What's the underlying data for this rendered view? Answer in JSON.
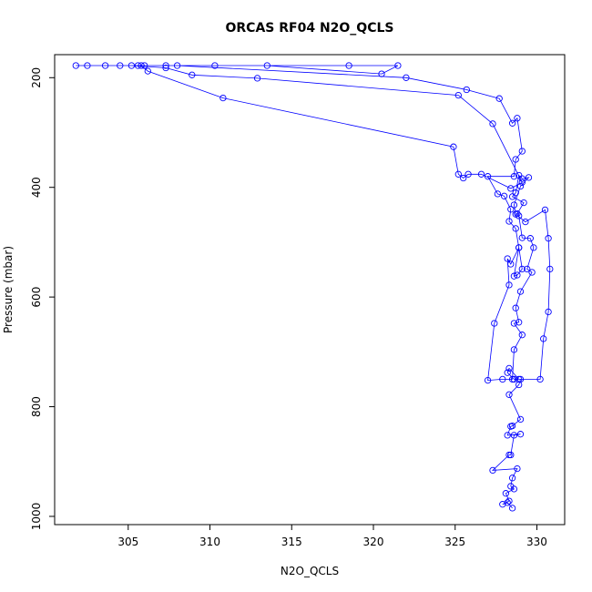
{
  "chart_data": {
    "type": "scatter",
    "title": "ORCAS RF04 N2O_QCLS",
    "xlabel": "N2O_QCLS",
    "ylabel": "Pressure (mbar)",
    "xlim": [
      300.5,
      331.7
    ],
    "ylim": [
      1015,
      158
    ],
    "y_inverted": true,
    "xticks": [
      305,
      310,
      315,
      320,
      325,
      330
    ],
    "yticks": [
      200,
      400,
      600,
      800,
      1000
    ],
    "grid": false,
    "colors": {
      "series": "#0000ff",
      "axes": "#000000"
    },
    "series": [
      {
        "marker": "open-circle",
        "connected": true,
        "points": [
          [
            328.5,
            985
          ],
          [
            328.2,
            975
          ],
          [
            327.9,
            978
          ],
          [
            328.3,
            972
          ],
          [
            328.1,
            958
          ],
          [
            328.6,
            950
          ],
          [
            328.4,
            945
          ],
          [
            328.5,
            930
          ],
          [
            328.8,
            913
          ],
          [
            327.3,
            916
          ],
          [
            328.3,
            888
          ],
          [
            328.4,
            888
          ],
          [
            328.6,
            852
          ],
          [
            329.0,
            850
          ],
          [
            328.2,
            852
          ],
          [
            328.4,
            836
          ],
          [
            328.5,
            835
          ],
          [
            329.0,
            823
          ],
          [
            328.3,
            778
          ],
          [
            328.9,
            760
          ],
          [
            329.0,
            750
          ],
          [
            328.6,
            750
          ],
          [
            328.2,
            738
          ],
          [
            328.3,
            730
          ],
          [
            328.9,
            750
          ],
          [
            330.2,
            750
          ],
          [
            330.4,
            676
          ],
          [
            330.7,
            627
          ],
          [
            330.8,
            549
          ],
          [
            330.7,
            493
          ],
          [
            330.5,
            441
          ],
          [
            329.3,
            463
          ],
          [
            328.7,
            449
          ],
          [
            328.6,
            432
          ],
          [
            329.0,
            398
          ],
          [
            329.5,
            382
          ],
          [
            329.1,
            384
          ],
          [
            328.9,
            378
          ],
          [
            328.7,
            410
          ],
          [
            328.5,
            417
          ],
          [
            329.2,
            428
          ],
          [
            328.8,
            448
          ],
          [
            328.9,
            452
          ],
          [
            329.1,
            492
          ],
          [
            329.6,
            493
          ],
          [
            329.8,
            510
          ],
          [
            329.4,
            549
          ],
          [
            329.7,
            555
          ],
          [
            329.0,
            590
          ],
          [
            328.7,
            620
          ],
          [
            328.9,
            646
          ],
          [
            328.6,
            648
          ],
          [
            329.1,
            669
          ],
          [
            328.6,
            696
          ],
          [
            328.5,
            750
          ],
          [
            327.9,
            750
          ],
          [
            327.0,
            752
          ],
          [
            327.4,
            648
          ],
          [
            328.3,
            578
          ],
          [
            328.2,
            530
          ],
          [
            328.4,
            540
          ],
          [
            328.9,
            510
          ],
          [
            328.6,
            562
          ],
          [
            328.8,
            560
          ],
          [
            329.1,
            549
          ],
          [
            328.9,
            510
          ],
          [
            328.7,
            475
          ],
          [
            328.3,
            462
          ],
          [
            328.4,
            440
          ],
          [
            328.0,
            416
          ],
          [
            327.6,
            412
          ],
          [
            327.0,
            380
          ],
          [
            328.6,
            380
          ],
          [
            328.7,
            349
          ],
          [
            329.1,
            334
          ],
          [
            328.8,
            274
          ],
          [
            328.5,
            283
          ],
          [
            327.7,
            238
          ],
          [
            325.7,
            222
          ],
          [
            322.0,
            200
          ],
          [
            308.0,
            178
          ],
          [
            304.5,
            178
          ],
          [
            302.5,
            178
          ],
          [
            306.0,
            178
          ],
          [
            310.3,
            178
          ],
          [
            318.5,
            178
          ],
          [
            321.5,
            178
          ],
          [
            320.5,
            193
          ],
          [
            313.5,
            178
          ],
          [
            307.3,
            178
          ],
          [
            305.6,
            178
          ],
          [
            303.6,
            178
          ],
          [
            301.8,
            178
          ],
          [
            305.2,
            178
          ],
          [
            307.3,
            182
          ],
          [
            308.9,
            195
          ],
          [
            312.9,
            201
          ],
          [
            325.2,
            232
          ],
          [
            327.3,
            284
          ],
          [
            329.1,
            391
          ],
          [
            328.4,
            402
          ],
          [
            326.6,
            376
          ],
          [
            325.8,
            376
          ],
          [
            325.5,
            383
          ],
          [
            325.2,
            376
          ],
          [
            324.9,
            326
          ],
          [
            310.8,
            237
          ],
          [
            306.2,
            188
          ],
          [
            305.8,
            178
          ]
        ]
      }
    ]
  }
}
